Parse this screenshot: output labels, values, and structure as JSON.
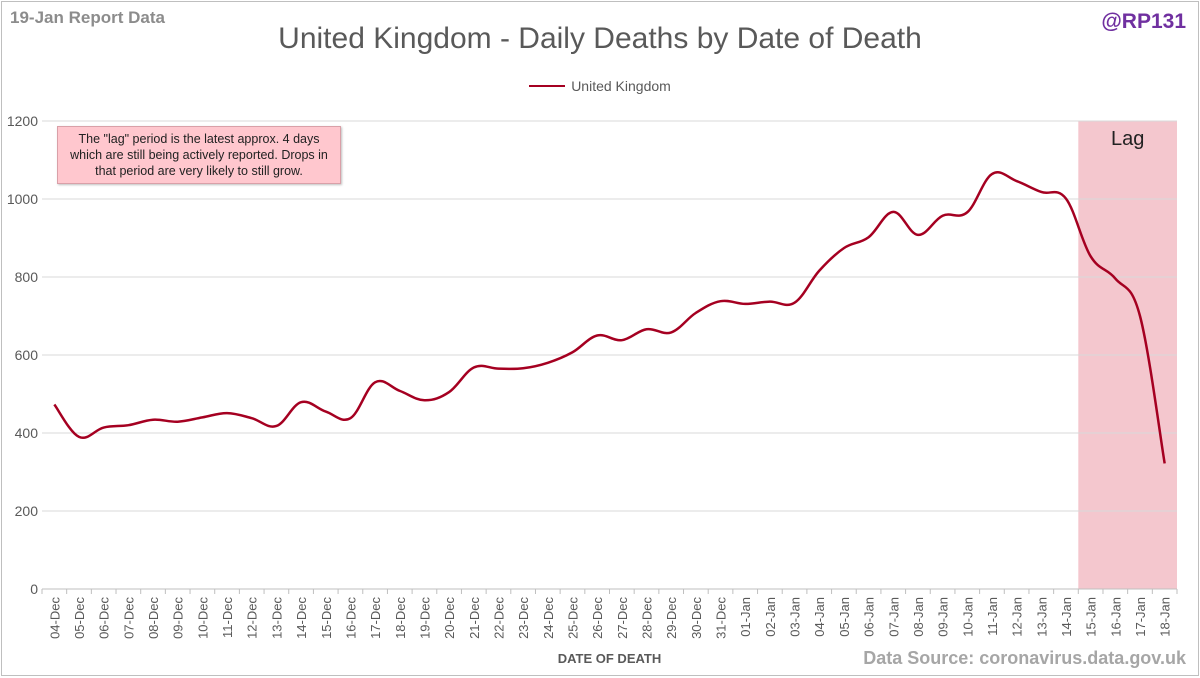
{
  "header": {
    "report_label": "19-Jan Report Data",
    "handle": "@RP131"
  },
  "footer": {
    "source": "Data Source: coronavirus.data.gov.uk"
  },
  "annotation": {
    "text": "The \"lag\" period is the latest approx. 4 days which are still being actively reported. Drops in that period are very likely to still grow."
  },
  "colors": {
    "line": "#a50021",
    "lag_fill": "#f4c7ce",
    "grid": "#d9d9d9",
    "axis_text": "#595959",
    "handle": "#7030a0"
  },
  "chart_data": {
    "type": "line",
    "title": "United Kingdom - Daily Deaths by Date of Death",
    "xlabel": "DATE OF DEATH",
    "ylabel": "",
    "ylim": [
      0,
      1200
    ],
    "yticks": [
      0,
      200,
      400,
      600,
      800,
      1000,
      1200
    ],
    "grid": true,
    "legend_position": "top-center",
    "categories": [
      "04-Dec",
      "05-Dec",
      "06-Dec",
      "07-Dec",
      "08-Dec",
      "09-Dec",
      "10-Dec",
      "11-Dec",
      "12-Dec",
      "13-Dec",
      "14-Dec",
      "15-Dec",
      "16-Dec",
      "17-Dec",
      "18-Dec",
      "19-Dec",
      "20-Dec",
      "21-Dec",
      "22-Dec",
      "23-Dec",
      "24-Dec",
      "25-Dec",
      "26-Dec",
      "27-Dec",
      "28-Dec",
      "29-Dec",
      "30-Dec",
      "31-Dec",
      "01-Jan",
      "02-Jan",
      "03-Jan",
      "04-Jan",
      "05-Jan",
      "06-Jan",
      "07-Jan",
      "08-Jan",
      "09-Jan",
      "10-Jan",
      "11-Jan",
      "12-Jan",
      "13-Jan",
      "14-Jan",
      "15-Jan",
      "16-Jan",
      "17-Jan",
      "18-Jan"
    ],
    "series": [
      {
        "name": "United Kingdom",
        "values": [
          473,
          390,
          414,
          420,
          434,
          429,
          440,
          451,
          438,
          418,
          479,
          455,
          438,
          530,
          508,
          484,
          505,
          568,
          565,
          566,
          580,
          607,
          650,
          638,
          666,
          658,
          708,
          738,
          731,
          737,
          734,
          816,
          874,
          902,
          967,
          908,
          957,
          966,
          1064,
          1046,
          1018,
          1001,
          853,
          796,
          700,
          322
        ]
      }
    ],
    "shaded_region": {
      "label": "Lag",
      "start": "15-Jan",
      "end": "18-Jan"
    }
  }
}
